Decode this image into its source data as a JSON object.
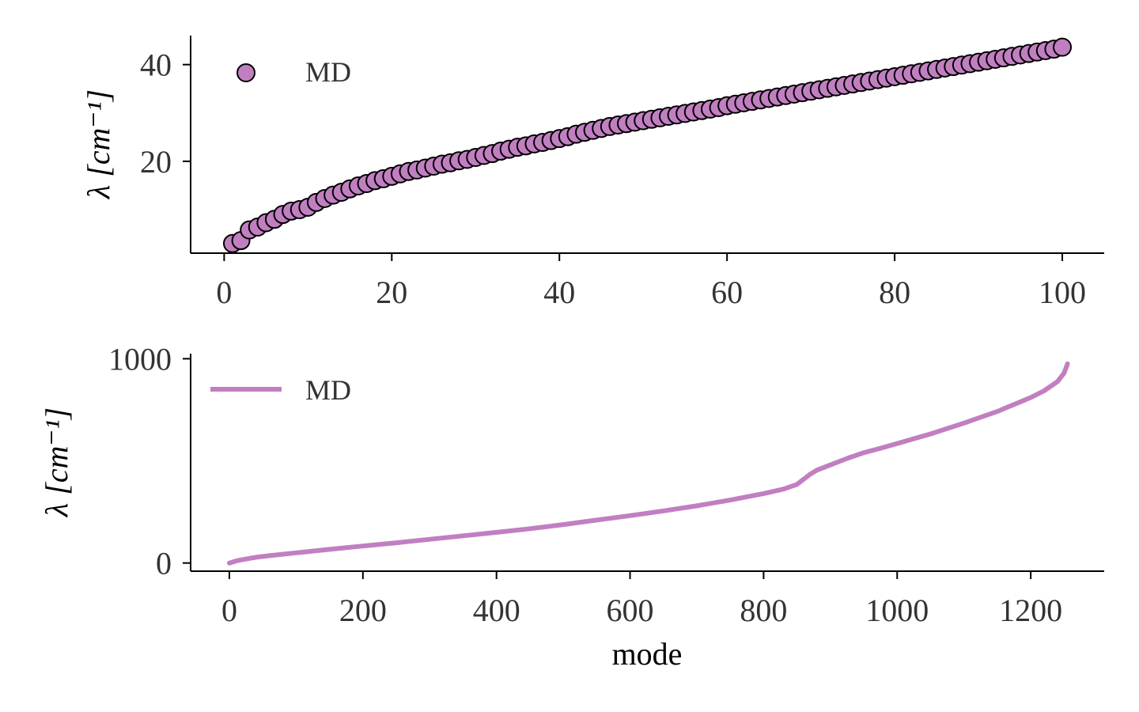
{
  "chart_data": [
    {
      "type": "scatter",
      "xlabel": "",
      "ylabel": "λ [cm⁻¹]",
      "xlim": [
        -4,
        105
      ],
      "ylim": [
        1,
        46
      ],
      "xticks": [
        0,
        20,
        40,
        60,
        80,
        100
      ],
      "yticks": [
        20,
        40
      ],
      "grid": false,
      "legend": "top-left",
      "marker_color": "#c17fc1",
      "edge_color": "#000000",
      "series": [
        {
          "name": "MD",
          "x": [
            1,
            2,
            3,
            4,
            5,
            6,
            7,
            8,
            9,
            10,
            11,
            12,
            13,
            14,
            15,
            16,
            17,
            18,
            19,
            20,
            21,
            22,
            23,
            24,
            25,
            26,
            27,
            28,
            29,
            30,
            31,
            32,
            33,
            34,
            35,
            36,
            37,
            38,
            39,
            40,
            41,
            42,
            43,
            44,
            45,
            46,
            47,
            48,
            49,
            50,
            51,
            52,
            53,
            54,
            55,
            56,
            57,
            58,
            59,
            60,
            61,
            62,
            63,
            64,
            65,
            66,
            67,
            68,
            69,
            70,
            71,
            72,
            73,
            74,
            75,
            76,
            77,
            78,
            79,
            80,
            81,
            82,
            83,
            84,
            85,
            86,
            87,
            88,
            89,
            90,
            91,
            92,
            93,
            94,
            95,
            96,
            97,
            98,
            99,
            100
          ],
          "y": [
            3.0,
            3.6,
            5.8,
            6.4,
            7.3,
            8.0,
            9.0,
            9.7,
            10.0,
            10.5,
            11.5,
            12.3,
            13.0,
            13.6,
            14.3,
            14.9,
            15.4,
            16.0,
            16.4,
            16.9,
            17.4,
            17.9,
            18.2,
            18.6,
            19.0,
            19.4,
            19.7,
            20.1,
            20.4,
            20.8,
            21.2,
            21.6,
            22.1,
            22.5,
            22.9,
            23.2,
            23.6,
            23.9,
            24.3,
            24.7,
            25.1,
            25.6,
            26.0,
            26.4,
            26.8,
            27.2,
            27.5,
            27.8,
            28.1,
            28.4,
            28.7,
            29.0,
            29.3,
            29.6,
            29.9,
            30.2,
            30.5,
            30.8,
            31.1,
            31.5,
            31.8,
            32.1,
            32.4,
            32.7,
            33.0,
            33.3,
            33.6,
            33.9,
            34.2,
            34.5,
            34.8,
            35.1,
            35.4,
            35.7,
            36.0,
            36.3,
            36.6,
            36.9,
            37.2,
            37.5,
            37.8,
            38.1,
            38.4,
            38.7,
            39.0,
            39.3,
            39.6,
            39.9,
            40.2,
            40.5,
            40.8,
            41.1,
            41.4,
            41.7,
            42.0,
            42.3,
            42.6,
            42.9,
            43.2,
            43.6
          ]
        }
      ]
    },
    {
      "type": "line",
      "xlabel": "mode",
      "ylabel": "λ [cm⁻¹]",
      "xlim": [
        -58,
        1310
      ],
      "ylim": [
        -40,
        1025
      ],
      "xticks": [
        0,
        200,
        400,
        600,
        800,
        1000,
        1200
      ],
      "yticks": [
        0,
        1000
      ],
      "grid": false,
      "legend": "top-left",
      "line_color": "#c17fc1",
      "series": [
        {
          "name": "MD",
          "x": [
            0,
            10,
            20,
            40,
            60,
            100,
            150,
            200,
            250,
            300,
            350,
            400,
            450,
            500,
            550,
            600,
            650,
            700,
            750,
            800,
            830,
            850,
            860,
            870,
            880,
            900,
            925,
            950,
            975,
            1000,
            1050,
            1100,
            1150,
            1200,
            1220,
            1240,
            1250,
            1255
          ],
          "y": [
            0,
            10,
            17,
            28,
            36,
            50,
            67,
            83,
            99,
            116,
            133,
            150,
            168,
            188,
            210,
            232,
            255,
            280,
            308,
            340,
            362,
            385,
            410,
            435,
            455,
            480,
            512,
            540,
            562,
            585,
            632,
            685,
            742,
            810,
            843,
            888,
            930,
            975
          ]
        }
      ]
    }
  ]
}
